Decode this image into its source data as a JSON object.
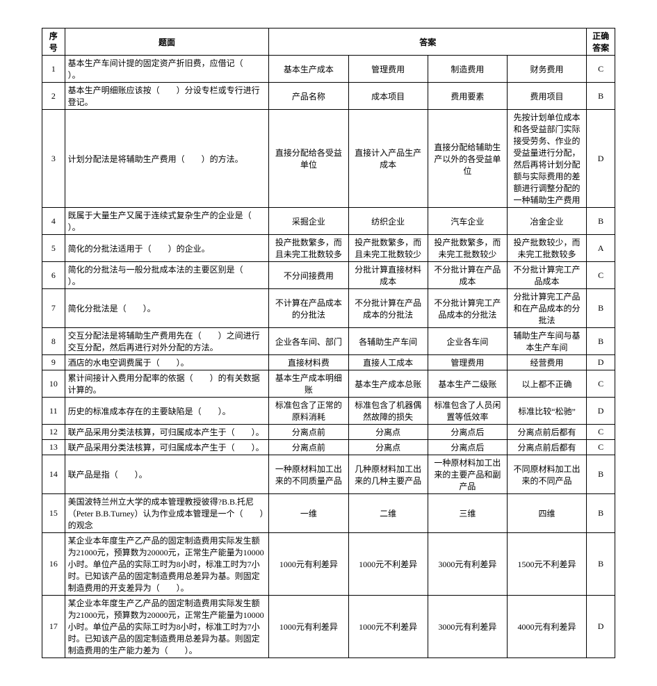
{
  "headers": {
    "num": "序号",
    "question": "题面",
    "answers_group": "答案",
    "correct": "正确答案"
  },
  "rows": [
    {
      "n": "1",
      "q": "基本生产车间计提的固定资产折旧费，应借记（　　）。",
      "a": "基本生产成本",
      "b": "管理费用",
      "c": "制造费用",
      "d": "财务费用",
      "ans": "C"
    },
    {
      "n": "2",
      "q": "基本生产明细账应该按（　　）分设专栏或专行进行登记。",
      "a": "产品名称",
      "b": "成本项目",
      "c": "费用要素",
      "d": "费用项目",
      "ans": "B"
    },
    {
      "n": "3",
      "q": "计划分配法是将辅助生产费用（　　）的方法。",
      "a": "直接分配给各受益单位",
      "b": "直接计入产品生产成本",
      "c": "直接分配给辅助生产以外的各受益单位",
      "d": "先按计划单位成本和各受益部门实际接受劳务、作业的受益量进行分配，然后再将计划分配额与实际费用的差额进行调整分配的一种辅助生产费用",
      "ans": "D"
    },
    {
      "n": "4",
      "q": "既属于大量生产又属于连续式复杂生产的企业是（　　）。",
      "a": "采掘企业",
      "b": "纺织企业",
      "c": "汽车企业",
      "d": "冶金企业",
      "ans": "B"
    },
    {
      "n": "5",
      "q": "简化的分批法适用于（　　）的企业。",
      "a": "投产批数繁多，而且未完工批数较多",
      "b": "投产批数繁多，而且未完工批数较少",
      "c": "投产批数繁多，而未完工批数较少",
      "d": "投产批数较少，而未完工批数较多",
      "ans": "A"
    },
    {
      "n": "6",
      "q": "简化的分批法与一般分批成本法的主要区别是（　　）。",
      "a": "不分间接费用",
      "b": "分批计算直接材料成本",
      "c": "不分批计算在产品成本",
      "d": "不分批计算完工产品成本",
      "ans": "C"
    },
    {
      "n": "7",
      "q": "简化分批法是（　　）。",
      "a": "不计算在产品成本的分批法",
      "b": "不分批计算在产品成本的分批法",
      "c": "不分批计算完工产品成本的分批法",
      "d": "分批计算完工产品和在产品成本的分批法",
      "ans": "B"
    },
    {
      "n": "8",
      "q": "交互分配法是将辅助生产费用先在（　　）之间进行交互分配，然后再进行对外分配的方法。",
      "a": "企业各车间、部门",
      "b": "各辅助生产车间",
      "c": "企业各车间",
      "d": "辅助生产车间与基本生产车间",
      "ans": "B"
    },
    {
      "n": "9",
      "q": "酒店的水电空调费属于（　　）。",
      "a": "直接材料费",
      "b": "直接人工成本",
      "c": "管理费用",
      "d": "经营费用",
      "ans": "D"
    },
    {
      "n": "10",
      "q": "累计间接计入费用分配率的依据（　　）的有关数据计算的。",
      "a": "基本生产成本明细账",
      "b": "基本生产成本总账",
      "c": "基本生产二级账",
      "d": "以上都不正确",
      "ans": "C"
    },
    {
      "n": "11",
      "q": "历史的标准成本存在的主要缺陷是（　　）。",
      "a": "标准包含了正常的原料消耗",
      "b": "标准包含了机器偶然故障的损失",
      "c": "标准包含了人员闲置等低效率",
      "d": "标准比较“松驰”",
      "ans": "D"
    },
    {
      "n": "12",
      "q": "联产品采用分类法核算，可归属成本产生于（　　）。",
      "a": "分离点前",
      "b": "分离点",
      "c": "分离点后",
      "d": "分离点前后都有",
      "ans": "C"
    },
    {
      "n": "13",
      "q": "联产品采用分类法核算，可归属成本产生于（　　）。",
      "a": "分离点前",
      "b": "分离点",
      "c": "分离点后",
      "d": "分离点前后都有",
      "ans": "C"
    },
    {
      "n": "14",
      "q": "联产品是指（　　）。",
      "a": "一种原材料加工出来的不同质量产品",
      "b": "几种原材料加工出来的几种主要产品",
      "c": "一种原材料加工出来的主要产品和副产品",
      "d": "不同原材料加工出来的不同产品",
      "ans": "B"
    },
    {
      "n": "15",
      "q": "美国波特兰州立大学的成本管理教授彼得?B.B.托尼（Peter B.B.Turney）认为作业成本管理是一个（　　）的观念",
      "a": "一维",
      "b": "二维",
      "c": "三维",
      "d": "四维",
      "ans": "B"
    },
    {
      "n": "16",
      "q": "某企业本年度生产乙产品的固定制造费用实际发生额为21000元，预算数为20000元，正常生产能量为10000小时。单位产品的实际工时为8小时，标准工时为7小时。已知该产品的固定制造费用总差异为基。则固定制造费用的开支差异为（　　）。",
      "a": "1000元有利差异",
      "b": "1000元不利差异",
      "c": "3000元有利差异",
      "d": "1500元不利差异",
      "ans": "B"
    },
    {
      "n": "17",
      "q": "某企业本年度生产乙产品的固定制造费用实际发生额为21000元，预算数为20000元，正常生产能量为10000小时。单位产品的实际工时为8小时，标准工时为7小时。已知该产品的固定制造费用总差异为基。则固定制造费用的生产能力差为（　　）。",
      "a": "1000元有利差异",
      "b": "1000元不利差异",
      "c": "3000元有利差异",
      "d": "4000元有利差异",
      "ans": "D"
    }
  ]
}
